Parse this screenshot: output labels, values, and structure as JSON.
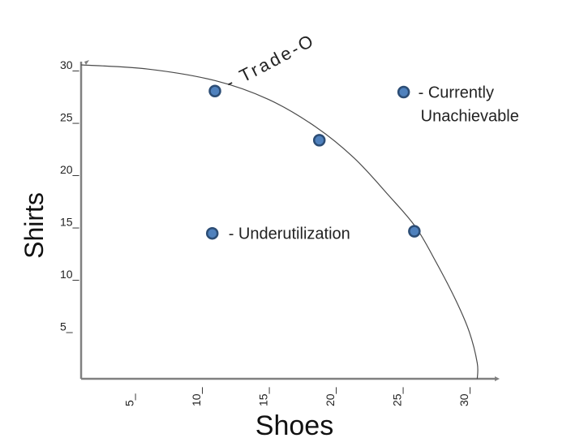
{
  "chart_data": {
    "type": "scatter",
    "xlabel": "Shoes",
    "ylabel": "Shirts",
    "xlim": [
      0,
      30
    ],
    "ylim": [
      0,
      30
    ],
    "x_ticks": [
      {
        "value": 5,
        "label": "5_"
      },
      {
        "value": 10,
        "label": "10_"
      },
      {
        "value": 15,
        "label": "15_"
      },
      {
        "value": 20,
        "label": "20_"
      },
      {
        "value": 25,
        "label": "25_"
      },
      {
        "value": 30,
        "label": "30_"
      }
    ],
    "y_ticks": [
      {
        "value": 5,
        "label": "5_"
      },
      {
        "value": 10,
        "label": "10_"
      },
      {
        "value": 15,
        "label": "15_"
      },
      {
        "value": 20,
        "label": "20_"
      },
      {
        "value": 25,
        "label": "25_"
      },
      {
        "value": 30,
        "label": "30_"
      }
    ],
    "curve": {
      "title": "- Trade-Offs",
      "points": [
        [
          0,
          30
        ],
        [
          5,
          29.6
        ],
        [
          10,
          28.5
        ],
        [
          14,
          26.7
        ],
        [
          17.5,
          24.1
        ],
        [
          20.4,
          21.1
        ],
        [
          23,
          17.5
        ],
        [
          25,
          14.5
        ],
        [
          26.5,
          11.2
        ],
        [
          28,
          7.5
        ],
        [
          29,
          4.5
        ],
        [
          29.6,
          1.5
        ],
        [
          29.6,
          0
        ]
      ]
    },
    "points": [
      {
        "x": 10,
        "y": 27.5
      },
      {
        "x": 17.8,
        "y": 22.8
      },
      {
        "x": 24.9,
        "y": 14.1
      },
      {
        "x": 9.8,
        "y": 13.9,
        "label": "- Underutilization"
      },
      {
        "x": 24.1,
        "y": 27.4,
        "label_lines": [
          "- Currently",
          "Unachievable"
        ]
      }
    ],
    "colors": {
      "point_fill": "#4F81BD",
      "point_stroke": "#2C4D75",
      "curve": "#4A4A4A",
      "axis": "#808080"
    }
  }
}
